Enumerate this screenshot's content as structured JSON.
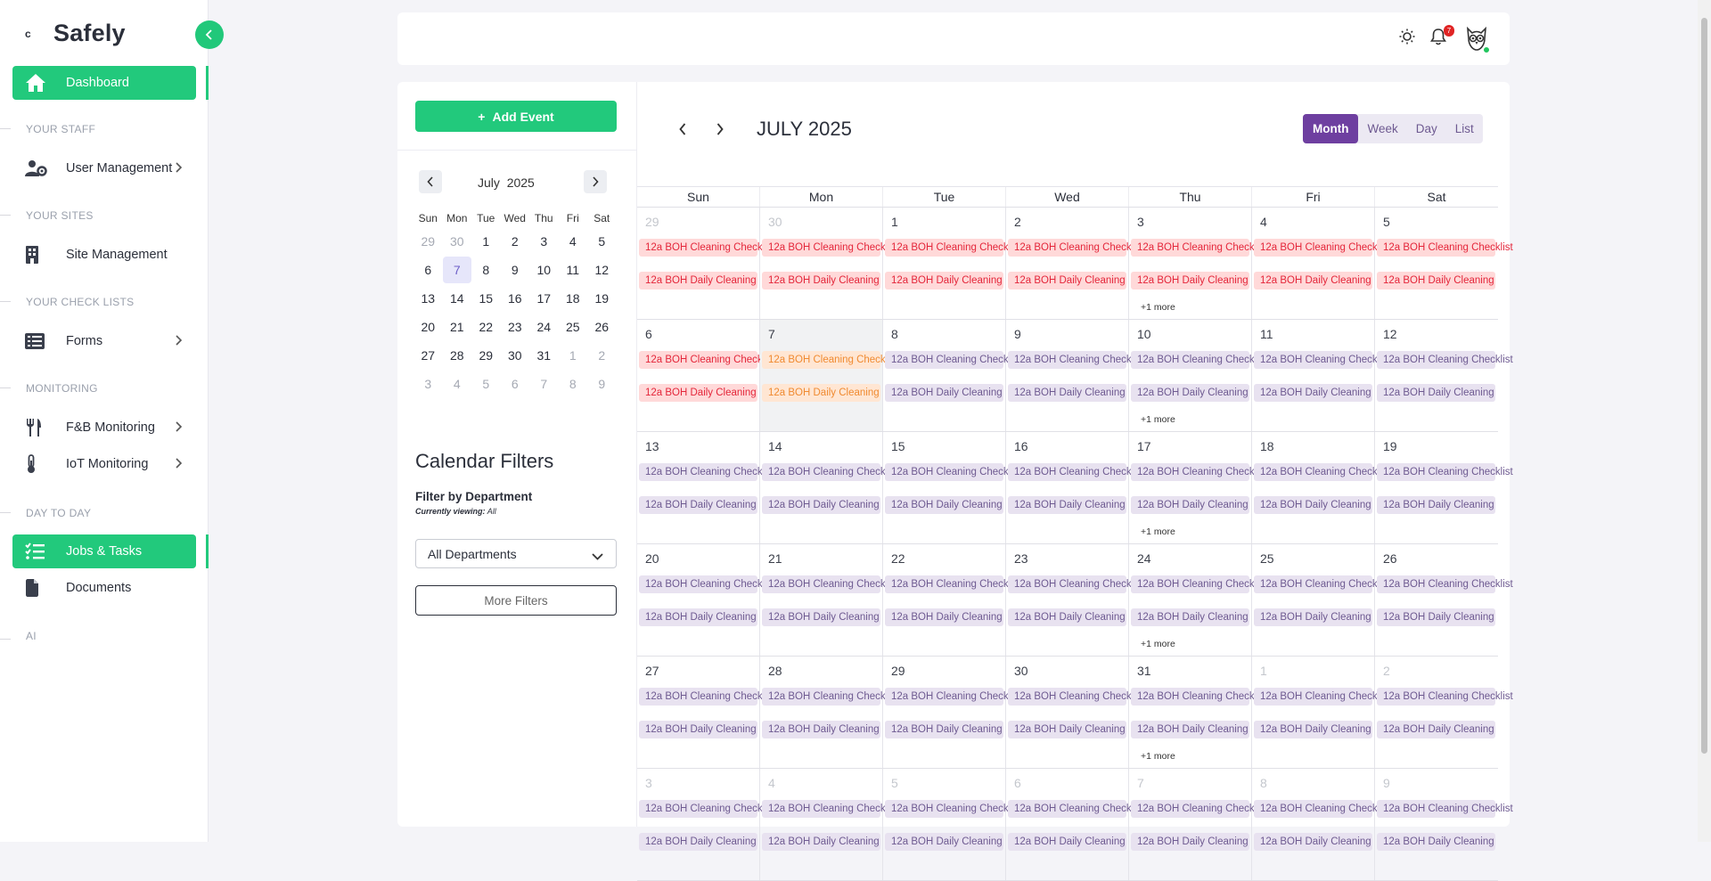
{
  "brand": {
    "name": "Safely",
    "mark": "c"
  },
  "sidebar": {
    "items": [
      {
        "label": "Dashboard"
      },
      {
        "label": "User Management"
      },
      {
        "label": "Site Management"
      },
      {
        "label": "Forms"
      },
      {
        "label": "F&B Monitoring"
      },
      {
        "label": "IoT Monitoring"
      },
      {
        "label": "Jobs & Tasks"
      },
      {
        "label": "Documents"
      }
    ],
    "sections": [
      "YOUR STAFF",
      "YOUR SITES",
      "YOUR CHECK LISTS",
      "MONITORING",
      "DAY TO DAY",
      "AI"
    ]
  },
  "topbar": {
    "notification_count": "7"
  },
  "left_panel": {
    "add_event": "Add Event",
    "mini_month": "July",
    "mini_year": "2025",
    "weekdays": [
      "Sun",
      "Mon",
      "Tue",
      "Wed",
      "Thu",
      "Fri",
      "Sat"
    ],
    "weeks": [
      [
        "29",
        "30",
        "1",
        "2",
        "3",
        "4",
        "5"
      ],
      [
        "6",
        "7",
        "8",
        "9",
        "10",
        "11",
        "12"
      ],
      [
        "13",
        "14",
        "15",
        "16",
        "17",
        "18",
        "19"
      ],
      [
        "20",
        "21",
        "22",
        "23",
        "24",
        "25",
        "26"
      ],
      [
        "27",
        "28",
        "29",
        "30",
        "31",
        "1",
        "2"
      ],
      [
        "3",
        "4",
        "5",
        "6",
        "7",
        "8",
        "9"
      ]
    ],
    "filters_title": "Calendar Filters",
    "filter_by_department": "Filter by Department",
    "currently_viewing_label": "Currently viewing:",
    "currently_viewing_value": "All",
    "department_value": "All Departments",
    "more_filters": "More Filters"
  },
  "calendar": {
    "title": "JULY 2025",
    "views": [
      "Month",
      "Week",
      "Day",
      "List"
    ],
    "active_view": "Month",
    "weekdays": [
      "Sun",
      "Mon",
      "Tue",
      "Wed",
      "Thu",
      "Fri",
      "Sat"
    ],
    "event1": "12a BOH Cleaning Checklist",
    "event2": "12a BOH Daily Cleaning",
    "more_label": "+1 more",
    "weeks": [
      [
        "29",
        "30",
        "1",
        "2",
        "3",
        "4",
        "5"
      ],
      [
        "6",
        "7",
        "8",
        "9",
        "10",
        "11",
        "12"
      ],
      [
        "13",
        "14",
        "15",
        "16",
        "17",
        "18",
        "19"
      ],
      [
        "20",
        "21",
        "22",
        "23",
        "24",
        "25",
        "26"
      ],
      [
        "27",
        "28",
        "29",
        "30",
        "31",
        "1",
        "2"
      ],
      [
        "3",
        "4",
        "5",
        "6",
        "7",
        "8",
        "9"
      ]
    ]
  },
  "colors": {
    "accent": "#22c97c",
    "view_active": "#6e3fa0",
    "event_past": "#ffd9d9",
    "event_today": "#ffe6d3",
    "event_future": "#e8e2f0"
  }
}
